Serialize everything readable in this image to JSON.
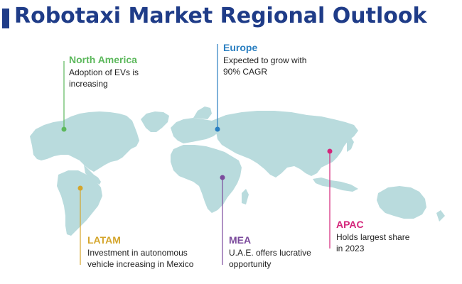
{
  "title": "Robotaxi Market Regional Outlook",
  "regions": [
    {
      "id": "north-america",
      "name": "North America",
      "desc_lines": [
        "Adoption of EVs is",
        "increasing"
      ],
      "color": "#5cb85c"
    },
    {
      "id": "europe",
      "name": "Europe",
      "desc_lines": [
        "Expected to grow with",
        "90% CAGR"
      ],
      "color": "#2a7fc1"
    },
    {
      "id": "latam",
      "name": "LATAM",
      "desc_lines": [
        "Investment in autonomous",
        "vehicle increasing in Mexico"
      ],
      "color": "#d4a52b"
    },
    {
      "id": "mea",
      "name": "MEA",
      "desc_lines": [
        "U.A.E. offers lucrative",
        "opportunity"
      ],
      "color": "#7b4a9c"
    },
    {
      "id": "apac",
      "name": "APAC",
      "desc_lines": [
        "Holds largest share",
        "in 2023"
      ],
      "color": "#d4257a"
    }
  ],
  "map_color": "#b9dbdd"
}
